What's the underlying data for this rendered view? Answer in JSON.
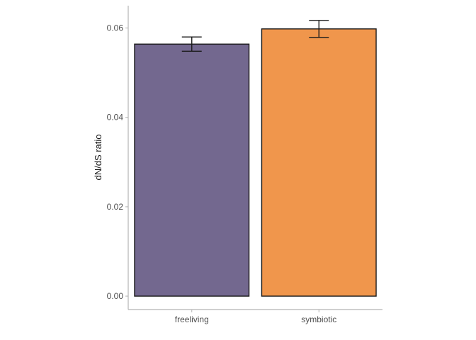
{
  "chart_data": {
    "type": "bar",
    "title": "",
    "xlabel": "",
    "ylabel": "dN/dS ratio",
    "categories": [
      "freeliving",
      "symbiotic"
    ],
    "values": [
      0.0564,
      0.0598
    ],
    "error_low": [
      0.0548,
      0.0579
    ],
    "error_high": [
      0.058,
      0.0617
    ],
    "ylim": [
      -0.003,
      0.065
    ],
    "yticks": [
      0.0,
      0.02,
      0.04,
      0.06
    ],
    "ytick_labels": [
      "0.00",
      "0.02",
      "0.04",
      "0.06"
    ],
    "bar_colors": [
      "#73688f",
      "#f0964c"
    ],
    "bar_outline_color": "#1a1a1a",
    "axis_color": "#b3b3b3",
    "grid": false,
    "legend": "none"
  }
}
